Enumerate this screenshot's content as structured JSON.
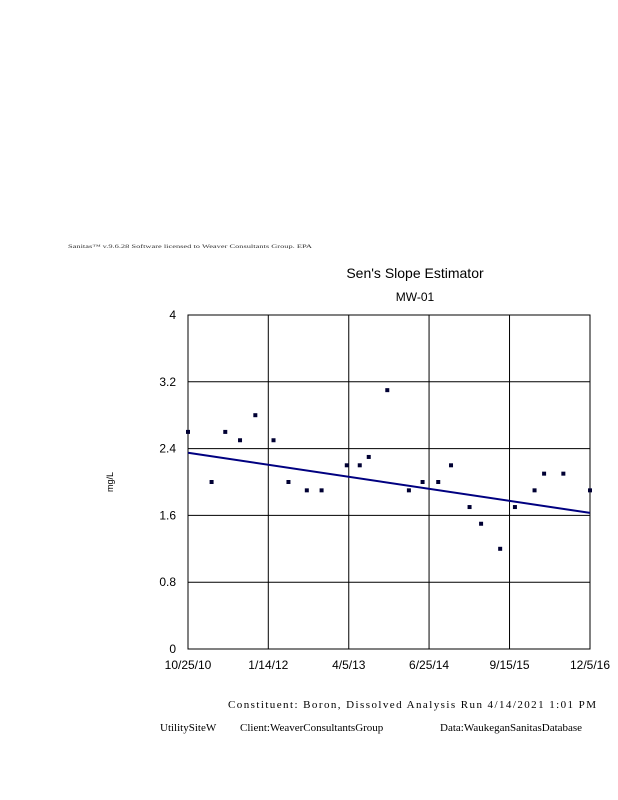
{
  "header_text": "Sanitas™ v.9.6.28 Software licensed to Weaver Consultants Group. EPA",
  "footer": {
    "line1": "Constituent: Boron, Dissolved Analysis Run 4/14/2021 1:01 PM",
    "site": "UtilitySiteW",
    "client": "Client:WeaverConsultantsGroup",
    "data": "Data:WaukeganSanitasDatabase"
  },
  "colors": {
    "trend_line": "#000080",
    "points": "#000033",
    "grid": "#000000"
  },
  "chart_data": {
    "type": "scatter",
    "title": "Sen's Slope Estimator",
    "subtitle": "MW-01",
    "ylabel": "mg/L",
    "xlabel": "",
    "xlim": [
      "2010-10-25",
      "2016-12-05"
    ],
    "ylim": [
      0,
      4
    ],
    "yticks": [
      0,
      0.8,
      1.6,
      2.4,
      3.2,
      4
    ],
    "xticks": [
      {
        "label": "10/25/10",
        "date": "2010-10-25"
      },
      {
        "label": "1/14/12",
        "date": "2012-01-14"
      },
      {
        "label": "4/5/13",
        "date": "2013-04-05"
      },
      {
        "label": "6/25/14",
        "date": "2014-06-25"
      },
      {
        "label": "9/15/15",
        "date": "2015-09-15"
      },
      {
        "label": "12/5/16",
        "date": "2016-12-05"
      }
    ],
    "grid": true,
    "series": [
      {
        "points": [
          {
            "x": "2010-10-25",
            "y": 2.6
          },
          {
            "x": "2011-03-05",
            "y": 2.0
          },
          {
            "x": "2011-05-20",
            "y": 2.6
          },
          {
            "x": "2011-08-10",
            "y": 2.5
          },
          {
            "x": "2011-11-03",
            "y": 2.8
          },
          {
            "x": "2012-02-12",
            "y": 2.5
          },
          {
            "x": "2012-05-05",
            "y": 2.0
          },
          {
            "x": "2012-08-15",
            "y": 1.9
          },
          {
            "x": "2012-11-05",
            "y": 1.9
          },
          {
            "x": "2013-03-25",
            "y": 2.2
          },
          {
            "x": "2013-06-05",
            "y": 2.2
          },
          {
            "x": "2013-07-25",
            "y": 2.3
          },
          {
            "x": "2013-11-05",
            "y": 3.1
          },
          {
            "x": "2014-03-05",
            "y": 1.9
          },
          {
            "x": "2014-05-20",
            "y": 2.0
          },
          {
            "x": "2014-08-15",
            "y": 2.0
          },
          {
            "x": "2014-10-25",
            "y": 2.2
          },
          {
            "x": "2015-02-05",
            "y": 1.7
          },
          {
            "x": "2015-04-10",
            "y": 1.5
          },
          {
            "x": "2015-07-25",
            "y": 1.2
          },
          {
            "x": "2015-10-15",
            "y": 1.7
          },
          {
            "x": "2016-02-01",
            "y": 1.9
          },
          {
            "x": "2016-03-25",
            "y": 2.1
          },
          {
            "x": "2016-07-10",
            "y": 2.1
          },
          {
            "x": "2016-12-05",
            "y": 1.9
          }
        ]
      }
    ],
    "trend_line": {
      "x": [
        "2010-10-25",
        "2016-12-05"
      ],
      "y": [
        2.35,
        1.63
      ]
    }
  }
}
